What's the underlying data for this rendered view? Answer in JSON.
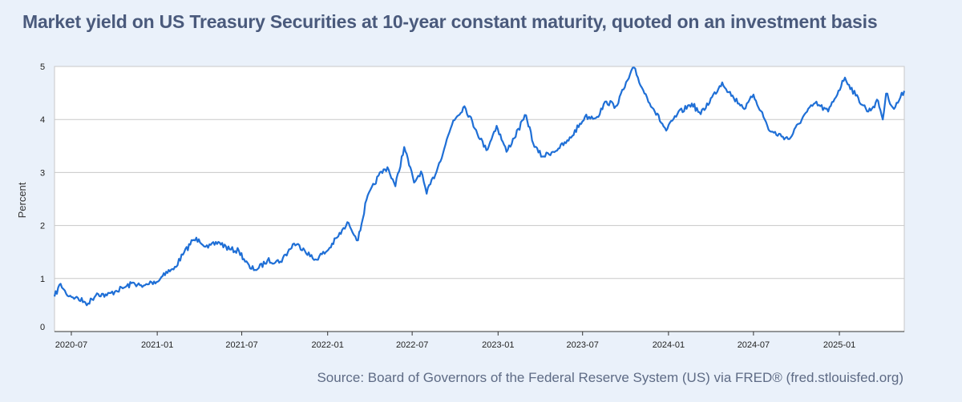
{
  "title": "Market yield on US Treasury Securities at 10-year constant maturity, quoted on an investment basis",
  "source": "Source: Board of Governors of the Federal Reserve System (US) via FRED® (fred.stlouisfed.org)",
  "colors": {
    "line": "#1f6fd6",
    "grid": "#c8c8c8",
    "background": "#eaf1fa",
    "plot_background": "#ffffff"
  },
  "chart_data": {
    "type": "line",
    "title": "Market yield on US Treasury Securities at 10-year constant maturity, quoted on an investment basis",
    "xlabel": "",
    "ylabel": "Percent",
    "ylim": [
      0,
      5
    ],
    "xlim": [
      "2020-05-26",
      "2025-05-20"
    ],
    "grid": true,
    "y_ticks": [
      "0",
      "1",
      "2",
      "3",
      "4",
      "5"
    ],
    "x_ticks": [
      "2020-07",
      "2021-01",
      "2021-07",
      "2022-01",
      "2022-07",
      "2023-01",
      "2023-07",
      "2024-01",
      "2024-07",
      "2025-01"
    ],
    "series": [
      {
        "name": "",
        "color": "#1f6fd6",
        "points": [
          [
            "2020-05-26",
            0.66
          ],
          [
            "2020-06-08",
            0.9
          ],
          [
            "2020-06-20",
            0.71
          ],
          [
            "2020-07-10",
            0.64
          ],
          [
            "2020-07-31",
            0.55
          ],
          [
            "2020-08-06",
            0.53
          ],
          [
            "2020-08-25",
            0.72
          ],
          [
            "2020-09-15",
            0.68
          ],
          [
            "2020-10-05",
            0.77
          ],
          [
            "2020-10-25",
            0.84
          ],
          [
            "2020-11-12",
            0.92
          ],
          [
            "2020-11-30",
            0.84
          ],
          [
            "2020-12-20",
            0.93
          ],
          [
            "2021-01-05",
            0.96
          ],
          [
            "2021-01-15",
            1.1
          ],
          [
            "2021-02-05",
            1.17
          ],
          [
            "2021-02-25",
            1.45
          ],
          [
            "2021-03-18",
            1.72
          ],
          [
            "2021-03-31",
            1.74
          ],
          [
            "2021-04-20",
            1.58
          ],
          [
            "2021-05-12",
            1.69
          ],
          [
            "2021-06-05",
            1.55
          ],
          [
            "2021-06-25",
            1.52
          ],
          [
            "2021-07-19",
            1.19
          ],
          [
            "2021-08-04",
            1.18
          ],
          [
            "2021-08-25",
            1.34
          ],
          [
            "2021-09-22",
            1.32
          ],
          [
            "2021-10-21",
            1.66
          ],
          [
            "2021-11-10",
            1.57
          ],
          [
            "2021-12-03",
            1.35
          ],
          [
            "2021-12-31",
            1.52
          ],
          [
            "2022-01-21",
            1.77
          ],
          [
            "2022-02-15",
            2.05
          ],
          [
            "2022-03-07",
            1.72
          ],
          [
            "2022-03-25",
            2.48
          ],
          [
            "2022-04-20",
            2.94
          ],
          [
            "2022-05-09",
            3.1
          ],
          [
            "2022-05-26",
            2.74
          ],
          [
            "2022-06-14",
            3.48
          ],
          [
            "2022-07-05",
            2.81
          ],
          [
            "2022-07-20",
            3.02
          ],
          [
            "2022-08-01",
            2.6
          ],
          [
            "2022-08-25",
            3.1
          ],
          [
            "2022-09-27",
            3.98
          ],
          [
            "2022-10-21",
            4.25
          ],
          [
            "2022-11-15",
            3.8
          ],
          [
            "2022-12-07",
            3.42
          ],
          [
            "2022-12-29",
            3.88
          ],
          [
            "2023-01-19",
            3.39
          ],
          [
            "2023-03-02",
            4.08
          ],
          [
            "2023-03-20",
            3.48
          ],
          [
            "2023-04-06",
            3.3
          ],
          [
            "2023-05-10",
            3.45
          ],
          [
            "2023-06-01",
            3.6
          ],
          [
            "2023-07-06",
            4.05
          ],
          [
            "2023-08-01",
            4.05
          ],
          [
            "2023-08-21",
            4.34
          ],
          [
            "2023-09-10",
            4.25
          ],
          [
            "2023-10-19",
            4.98
          ],
          [
            "2023-11-05",
            4.6
          ],
          [
            "2023-11-30",
            4.2
          ],
          [
            "2023-12-27",
            3.79
          ],
          [
            "2024-01-20",
            4.1
          ],
          [
            "2024-02-20",
            4.3
          ],
          [
            "2024-03-10",
            4.1
          ],
          [
            "2024-04-25",
            4.7
          ],
          [
            "2024-05-20",
            4.4
          ],
          [
            "2024-06-14",
            4.21
          ],
          [
            "2024-07-01",
            4.47
          ],
          [
            "2024-07-17",
            4.16
          ],
          [
            "2024-08-05",
            3.78
          ],
          [
            "2024-09-16",
            3.63
          ],
          [
            "2024-10-15",
            4.05
          ],
          [
            "2024-11-10",
            4.31
          ],
          [
            "2024-12-08",
            4.15
          ],
          [
            "2025-01-13",
            4.79
          ],
          [
            "2025-02-05",
            4.45
          ],
          [
            "2025-03-04",
            4.15
          ],
          [
            "2025-03-25",
            4.35
          ],
          [
            "2025-04-04",
            4.0
          ],
          [
            "2025-04-11",
            4.49
          ],
          [
            "2025-04-28",
            4.2
          ],
          [
            "2025-05-20",
            4.54
          ]
        ]
      }
    ]
  }
}
